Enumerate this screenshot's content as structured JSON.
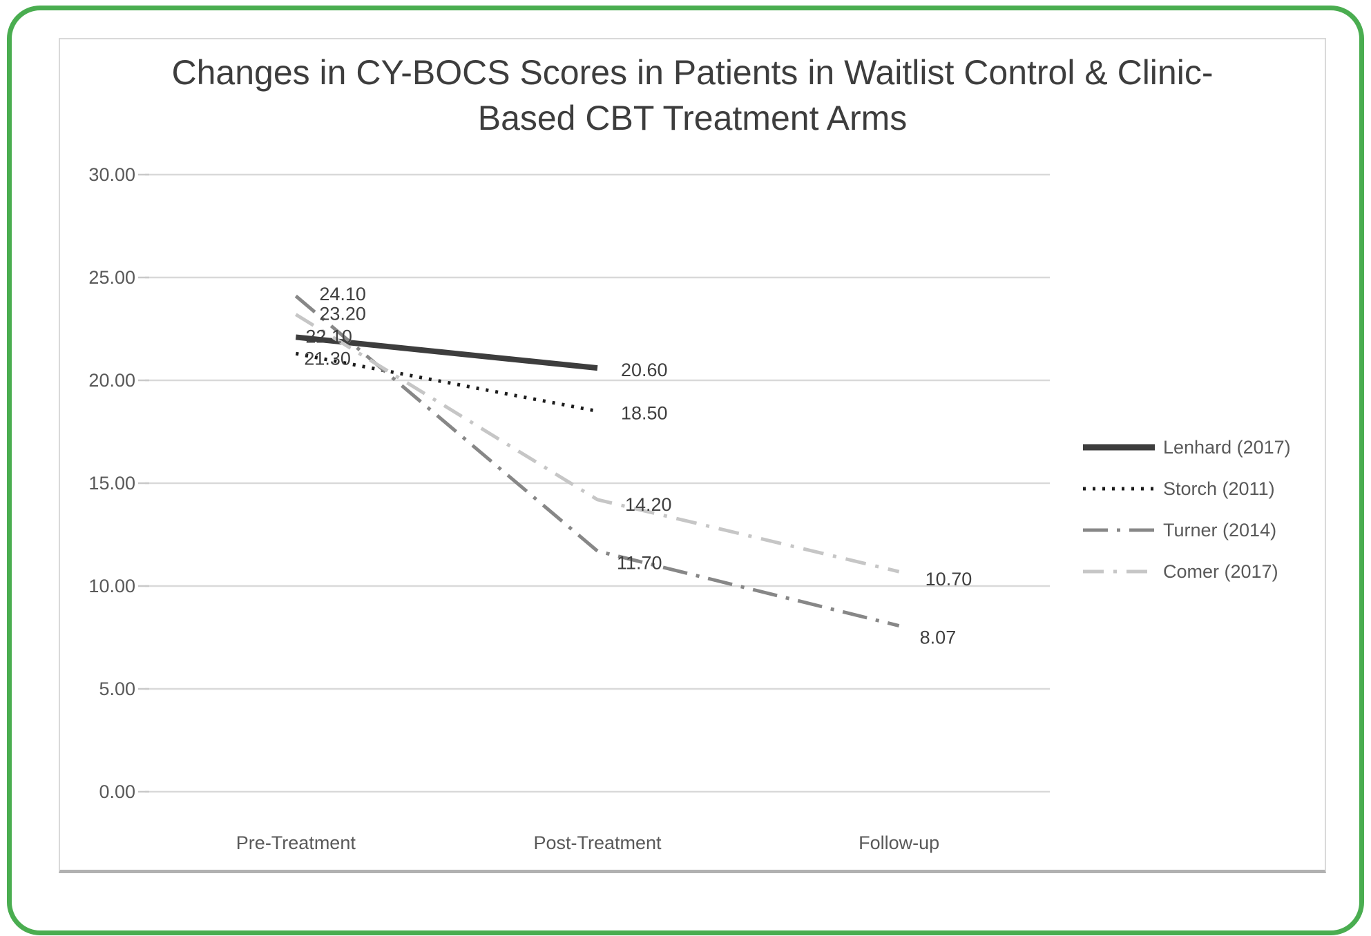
{
  "frame": {
    "border_color": "#4aad50"
  },
  "colors": {
    "gridline": "#d9d9d9",
    "tick": "#c9c9c9",
    "axis_label": "#595959",
    "data_label": "#3f3f3f",
    "title": "#3d3d3d",
    "panel_border": "#d9d9d9",
    "panel_border_bottom": "#b1b1b1"
  },
  "chart_data": {
    "type": "line",
    "title": "Changes in CY-BOCS Scores in Patients in Waitlist Control & Clinic-Based CBT Treatment Arms",
    "title_line1": "Changes in CY-BOCS Scores in Patients in Waitlist Control & Clinic-",
    "title_line2": "Based CBT Treatment Arms",
    "categories": [
      "Pre-Treatment",
      "Post-Treatment",
      "Follow-up"
    ],
    "xlabel": "",
    "ylabel": "",
    "ylim": [
      0,
      30
    ],
    "y_ticks": [
      "0.00",
      "5.00",
      "10.00",
      "15.00",
      "20.00",
      "25.00",
      "30.00"
    ],
    "grid": true,
    "legend_position": "right",
    "series": [
      {
        "name": "Lenhard (2017)",
        "values": [
          22.1,
          20.6,
          null
        ],
        "point_labels": [
          "22.10",
          "20.60"
        ],
        "label_offsets": [
          [
            14,
            8
          ],
          [
            34,
            12
          ]
        ],
        "color": "#3d3d3d",
        "style": "solid",
        "width": 8
      },
      {
        "name": "Storch (2011)",
        "values": [
          21.3,
          18.5,
          null
        ],
        "point_labels": [
          "21.30",
          "18.50"
        ],
        "label_offsets": [
          [
            12,
            16
          ],
          [
            34,
            12
          ]
        ],
        "color": "#1c1c1c",
        "style": "dotted",
        "width": 5
      },
      {
        "name": "Turner (2014)",
        "values": [
          24.1,
          11.7,
          8.07
        ],
        "point_labels": [
          "24.10",
          "11.70",
          "8.07"
        ],
        "label_offsets": [
          [
            34,
            6
          ],
          [
            28,
            26
          ],
          [
            30,
            26
          ]
        ],
        "color": "#878787",
        "style": "dash-dot",
        "width": 5
      },
      {
        "name": "Comer (2017)",
        "values": [
          23.2,
          14.2,
          10.7
        ],
        "point_labels": [
          "23.20",
          "14.20",
          "10.70"
        ],
        "label_offsets": [
          [
            34,
            8
          ],
          [
            40,
            16
          ],
          [
            38,
            20
          ]
        ],
        "color": "#c6c6c6",
        "style": "dashed",
        "width": 5
      }
    ]
  }
}
